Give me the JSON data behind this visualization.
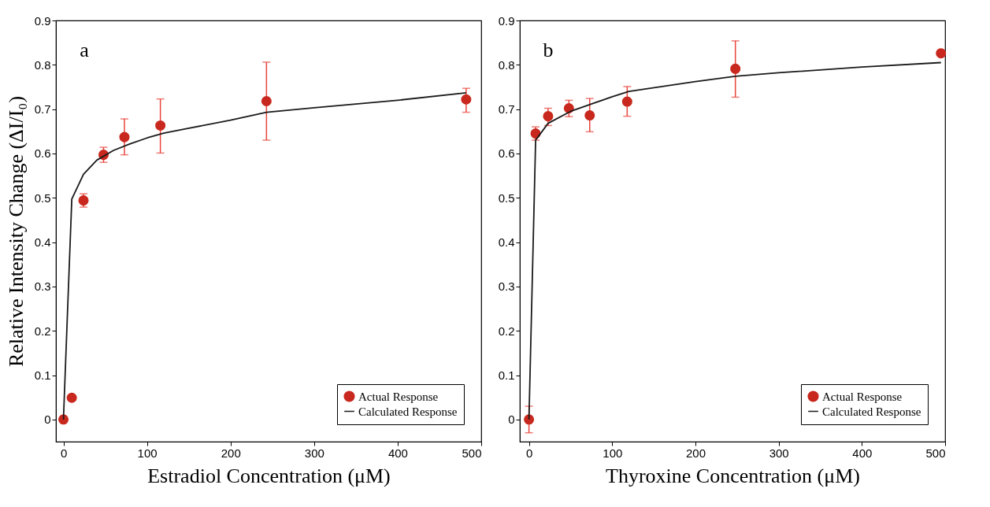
{
  "chart_data": [
    {
      "type": "scatter",
      "xlabel": "Estradiol Concentration (μM)",
      "ylabel": "Relative Intensity Change (ΔI/I₀)",
      "xlim": [
        -9,
        500
      ],
      "ylim": [
        -0.05,
        0.9
      ],
      "xticks": [
        0,
        100,
        200,
        300,
        400,
        500
      ],
      "yticks": [
        0,
        0.1,
        0.2,
        0.3,
        0.4,
        0.5,
        0.6,
        0.7,
        0.8,
        0.9
      ],
      "legend": "bottom right",
      "annotations": [
        "a"
      ],
      "series": [
        {
          "name": "Actual Response",
          "type": "scatter",
          "marker": "circle",
          "color": "#c8281e",
          "x": [
            0,
            10,
            24,
            48,
            73,
            116,
            243,
            482
          ],
          "values": [
            0,
            0.049,
            0.494,
            0.597,
            0.637,
            0.663,
            0.718,
            0.722
          ],
          "errors": [
            null,
            null,
            0.015,
            0.017,
            [
              0.597,
              0.678
            ],
            [
              0.601,
              0.723
            ],
            [
              0.63,
              0.806
            ],
            [
              0.693,
              0.747
            ]
          ]
        },
        {
          "name": "Calculated Response",
          "type": "line",
          "marker": "none",
          "color": "#1a1a1a",
          "x": [
            0,
            10,
            24,
            40,
            60,
            80,
            100,
            120,
            150,
            200,
            243,
            300,
            400,
            482
          ],
          "values": [
            0,
            0.497,
            0.553,
            0.585,
            0.607,
            0.622,
            0.635,
            0.646,
            0.657,
            0.675,
            0.693,
            0.703,
            0.72,
            0.737
          ]
        }
      ]
    },
    {
      "type": "scatter",
      "xlabel": "Thyroxine Concentration (μM)",
      "xlim": [
        -11,
        500
      ],
      "ylim": [
        -0.05,
        0.9
      ],
      "xticks": [
        0,
        100,
        200,
        300,
        400,
        500
      ],
      "yticks": [
        0,
        0.1,
        0.2,
        0.3,
        0.4,
        0.5,
        0.6,
        0.7,
        0.8,
        0.9
      ],
      "legend": "bottom right",
      "annotations": [
        "b"
      ],
      "series": [
        {
          "name": "Actual Response",
          "type": "scatter",
          "marker": "circle",
          "color": "#c8281e",
          "x": [
            0,
            8,
            23,
            48,
            73,
            118,
            248,
            495
          ],
          "values": [
            0,
            0.645,
            0.684,
            0.702,
            0.686,
            0.717,
            0.791,
            0.826
          ],
          "errors": [
            0.03,
            [
              0.63,
              0.66
            ],
            [
              0.663,
              0.702
            ],
            [
              0.683,
              0.72
            ],
            [
              0.649,
              0.724
            ],
            [
              0.684,
              0.751
            ],
            [
              0.727,
              0.854
            ],
            null
          ]
        },
        {
          "name": "Calculated Response",
          "type": "line",
          "marker": "none",
          "color": "#1a1a1a",
          "x": [
            0,
            8,
            23,
            50,
            100,
            120,
            200,
            248,
            300,
            400,
            495
          ],
          "values": [
            0,
            0.63,
            0.668,
            0.695,
            0.728,
            0.74,
            0.762,
            0.774,
            0.782,
            0.795,
            0.805
          ]
        }
      ]
    }
  ]
}
